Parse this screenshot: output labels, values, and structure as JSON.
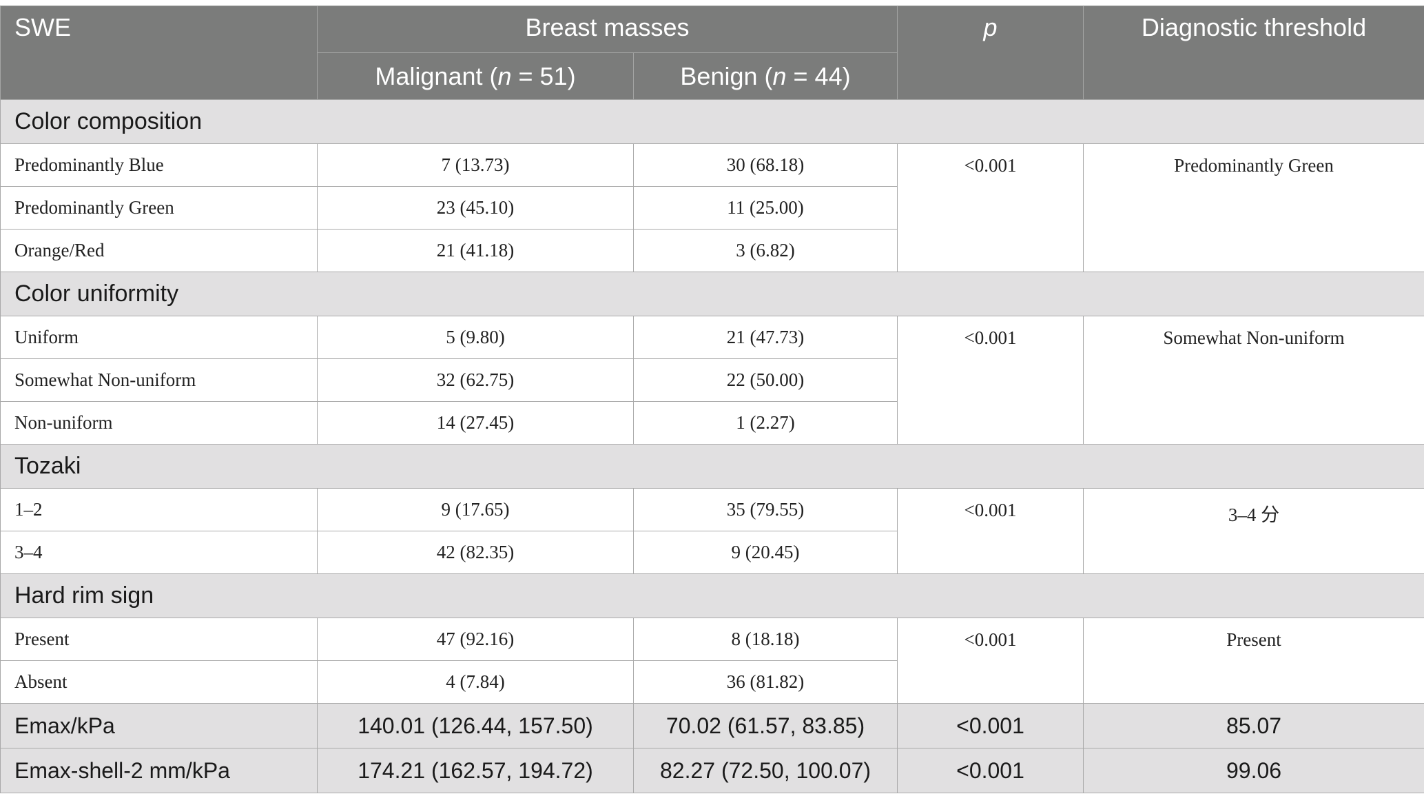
{
  "header": {
    "swe": "SWE",
    "breast_masses": "Breast masses",
    "p": "p",
    "diagnostic_threshold": "Diagnostic threshold",
    "malignant_prefix": "Malignant (",
    "malignant_n": "n",
    "malignant_suffix": " = 51)",
    "benign_prefix": "Benign (",
    "benign_n": "n",
    "benign_suffix": " = 44)"
  },
  "sections": {
    "color_composition": {
      "title": "Color composition",
      "p": "<0.001",
      "threshold": "Predominantly Green",
      "rows": [
        {
          "label": "Predominantly Blue",
          "malignant": "7 (13.73)",
          "benign": "30 (68.18)"
        },
        {
          "label": "Predominantly Green",
          "malignant": "23 (45.10)",
          "benign": "11 (25.00)"
        },
        {
          "label": "Orange/Red",
          "malignant": "21 (41.18)",
          "benign": "3 (6.82)"
        }
      ]
    },
    "color_uniformity": {
      "title": "Color uniformity",
      "p": "<0.001",
      "threshold": "Somewhat Non-uniform",
      "rows": [
        {
          "label": "Uniform",
          "malignant": "5 (9.80)",
          "benign": "21 (47.73)"
        },
        {
          "label": "Somewhat Non-uniform",
          "malignant": "32 (62.75)",
          "benign": "22 (50.00)"
        },
        {
          "label": "Non-uniform",
          "malignant": "14 (27.45)",
          "benign": "1 (2.27)"
        }
      ]
    },
    "tozaki": {
      "title": "Tozaki",
      "p": "<0.001",
      "threshold": "3–4 分",
      "rows": [
        {
          "label": "1–2",
          "malignant": "9 (17.65)",
          "benign": "35 (79.55)"
        },
        {
          "label": "3–4",
          "malignant": "42 (82.35)",
          "benign": "9 (20.45)"
        }
      ]
    },
    "hard_rim_sign": {
      "title": "Hard rim sign",
      "p": "<0.001",
      "threshold": "Present",
      "rows": [
        {
          "label": "Present",
          "malignant": "47 (92.16)",
          "benign": "8 (18.18)"
        },
        {
          "label": "Absent",
          "malignant": "4 (7.84)",
          "benign": "36 (81.82)"
        }
      ]
    }
  },
  "summary_rows": [
    {
      "label": "Emax/kPa",
      "malignant": "140.01 (126.44, 157.50)",
      "benign": "70.02 (61.57, 83.85)",
      "p": "<0.001",
      "threshold": "85.07"
    },
    {
      "label": "Emax-shell-2 mm/kPa",
      "malignant": "174.21 (162.57, 194.72)",
      "benign": "82.27 (72.50, 100.07)",
      "p": "<0.001",
      "threshold": "99.06"
    }
  ]
}
